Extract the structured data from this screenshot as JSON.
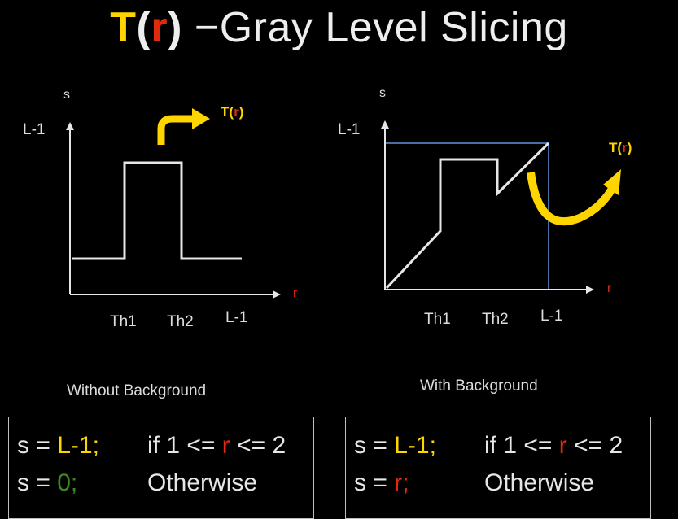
{
  "title": {
    "t": "T",
    "open": "(",
    "r": "r",
    "close": ")",
    "rest": " −Gray Level Slicing"
  },
  "left_graph": {
    "y_label": "s",
    "y_max_label": "L-1",
    "x_label": "r",
    "ticks": [
      "Th1",
      "Th2",
      "L-1"
    ],
    "tr_t": "T",
    "tr_open": "(",
    "tr_r": "r",
    "tr_close": ")",
    "caption": "Without Background",
    "arrow_icon": "curved-arrow-icon"
  },
  "right_graph": {
    "y_label": "s",
    "y_max_label": "L-1",
    "x_label": "r",
    "ticks": [
      "Th1",
      "Th2",
      "L-1"
    ],
    "tr_t": "T",
    "tr_open": "(",
    "tr_r": "r",
    "tr_close": ")",
    "caption": "With Background",
    "arrow_icon": "u-turn-arrow-icon"
  },
  "left_box": {
    "row1": {
      "prefix": "s = ",
      "value": "L-1;",
      "cond_a": "if 1 <= ",
      "cond_r": "r",
      "cond_b": " <= 2"
    },
    "row2": {
      "prefix": "s = ",
      "value": "0;",
      "cond": "Otherwise"
    }
  },
  "right_box": {
    "row1": {
      "prefix": "s = ",
      "value": "L-1;",
      "cond_a": "if 1 <= ",
      "cond_r": "r",
      "cond_b": " <= 2"
    },
    "row2": {
      "prefix": "s = ",
      "value": "r;",
      "cond": "Otherwise"
    }
  },
  "colors": {
    "yellow": "#ffd500",
    "red": "#e32a0e",
    "green": "#3c8a1e",
    "blue": "#4a6fa5",
    "line": "#e6e6e6"
  }
}
